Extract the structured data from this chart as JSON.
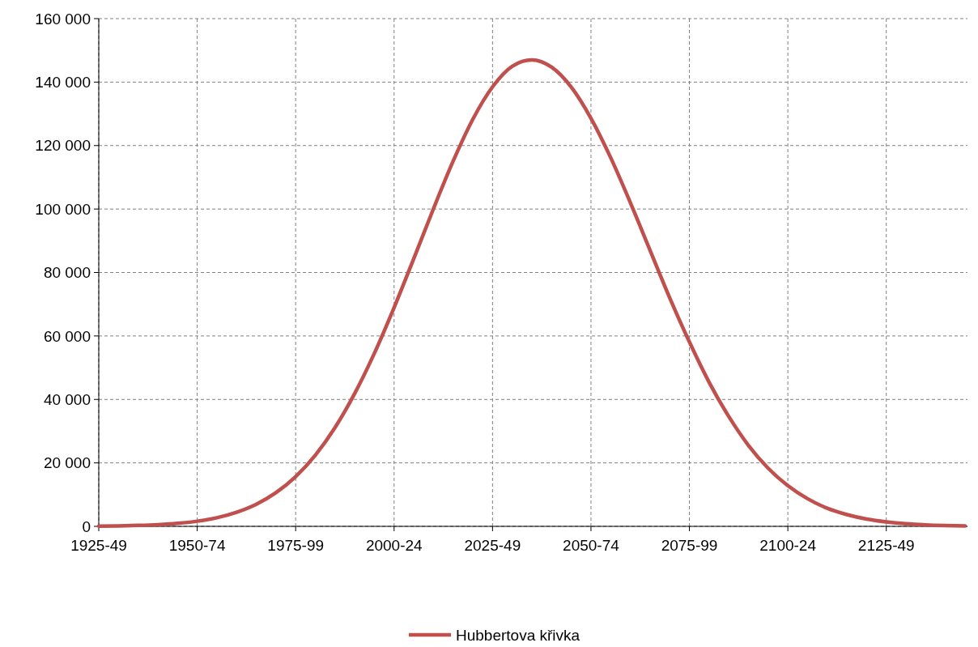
{
  "chart_data": {
    "type": "line",
    "categories": [
      "1925-49",
      null,
      null,
      null,
      null,
      "1950-74",
      null,
      null,
      null,
      null,
      "1975-99",
      null,
      null,
      null,
      null,
      "2000-24",
      null,
      null,
      null,
      null,
      "2025-49",
      null,
      null,
      null,
      null,
      "2050-74",
      null,
      null,
      null,
      null,
      "2075-99",
      null,
      null,
      null,
      null,
      "2100-24",
      null,
      null,
      null,
      null,
      "2125-49",
      null,
      null,
      null,
      null
    ],
    "series": [
      {
        "name": "Hubbertova křivka",
        "color": "#c0504d",
        "values": [
          80,
          150,
          290,
          530,
          940,
          1630,
          2720,
          4440,
          6970,
          10600,
          15650,
          22430,
          31150,
          41870,
          54570,
          68950,
          84380,
          100100,
          115100,
          128300,
          138500,
          145000,
          147000,
          144700,
          138400,
          128600,
          116200,
          102000,
          87000,
          72000,
          58100,
          45400,
          34600,
          25500,
          18300,
          12800,
          8700,
          5700,
          3700,
          2300,
          1400,
          800,
          460,
          260,
          140
        ]
      }
    ],
    "ylim": [
      0,
      160000
    ],
    "yticks": [
      0,
      {
        "value": 20000,
        "label": "20 000"
      },
      {
        "value": 40000,
        "label": "40 000"
      },
      {
        "value": 60000,
        "label": "60 000"
      },
      {
        "value": 80000,
        "label": "80 000"
      },
      {
        "value": 100000,
        "label": "100 000"
      },
      {
        "value": 120000,
        "label": "120 000"
      },
      {
        "value": 140000,
        "label": "140 000"
      },
      {
        "value": 160000,
        "label": "160 000"
      }
    ],
    "grid": true,
    "legend": "bottom",
    "marker": "none",
    "line_style": "solid"
  }
}
